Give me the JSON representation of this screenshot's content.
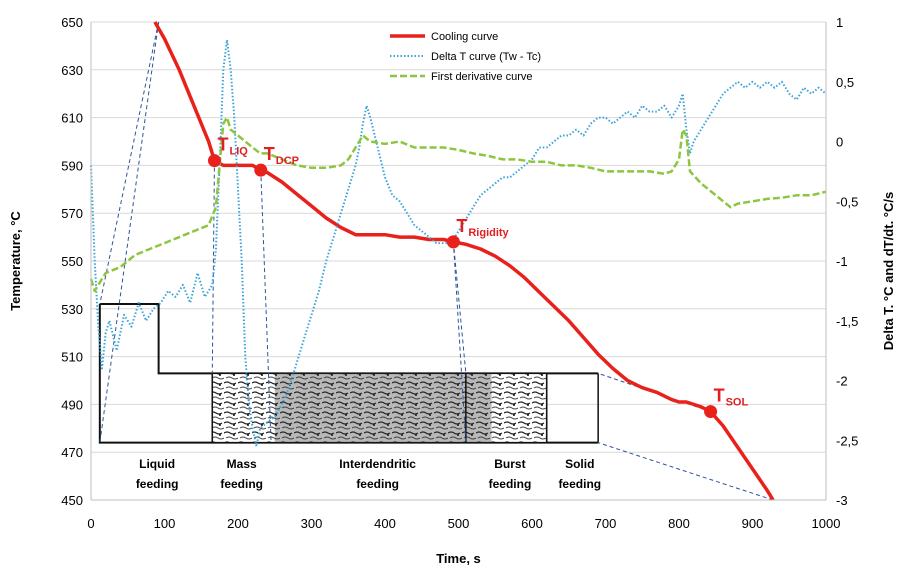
{
  "chart_data": {
    "type": "line",
    "x_axis": {
      "label": "Time, s",
      "range": [
        0,
        1000
      ],
      "ticks": [
        "0",
        "100",
        "200",
        "300",
        "400",
        "500",
        "600",
        "700",
        "800",
        "900",
        "1000"
      ]
    },
    "y_left": {
      "label": "Temperature, °C",
      "range": [
        450,
        650
      ],
      "ticks": [
        "450",
        "470",
        "490",
        "510",
        "530",
        "550",
        "570",
        "590",
        "610",
        "630",
        "650"
      ]
    },
    "y_right": {
      "label": "Delta T. °C and dT/dt. °C/s",
      "range": [
        -3,
        1
      ],
      "ticks": [
        "-3",
        "-2,5",
        "-2",
        "-1,5",
        "-1",
        "-0,5",
        "0",
        "0,5",
        "1"
      ]
    },
    "legend_position": "top-center",
    "series": [
      {
        "name": "Cooling curve",
        "axis": "left",
        "color": "#e8211b",
        "style": "solid",
        "points": [
          [
            87,
            650
          ],
          [
            100,
            643
          ],
          [
            120,
            630
          ],
          [
            140,
            615
          ],
          [
            160,
            600
          ],
          [
            168,
            592
          ],
          [
            180,
            590
          ],
          [
            200,
            590
          ],
          [
            220,
            590
          ],
          [
            231,
            588
          ],
          [
            240,
            587
          ],
          [
            260,
            583
          ],
          [
            280,
            578
          ],
          [
            300,
            573
          ],
          [
            320,
            568
          ],
          [
            340,
            564
          ],
          [
            360,
            561
          ],
          [
            380,
            561
          ],
          [
            400,
            561
          ],
          [
            420,
            560
          ],
          [
            440,
            560
          ],
          [
            460,
            559
          ],
          [
            480,
            559
          ],
          [
            493,
            558
          ],
          [
            510,
            557
          ],
          [
            530,
            555
          ],
          [
            550,
            552
          ],
          [
            570,
            548
          ],
          [
            590,
            543
          ],
          [
            610,
            537
          ],
          [
            630,
            531
          ],
          [
            650,
            525
          ],
          [
            670,
            518
          ],
          [
            690,
            511
          ],
          [
            710,
            505
          ],
          [
            730,
            500
          ],
          [
            750,
            497
          ],
          [
            770,
            495
          ],
          [
            790,
            492
          ],
          [
            800,
            491
          ],
          [
            810,
            491
          ],
          [
            820,
            490
          ],
          [
            830,
            489
          ],
          [
            843,
            487
          ],
          [
            860,
            481
          ],
          [
            880,
            472
          ],
          [
            900,
            463
          ],
          [
            920,
            454
          ],
          [
            928,
            450
          ]
        ]
      },
      {
        "name": "Delta T curve (Tw - Tc)",
        "axis": "right",
        "color": "#3ba3d9",
        "style": "dotted",
        "points": [
          [
            0,
            -0.2
          ],
          [
            5,
            -1.0
          ],
          [
            10,
            -1.55
          ],
          [
            15,
            -1.9
          ],
          [
            20,
            -1.6
          ],
          [
            25,
            -1.5
          ],
          [
            35,
            -1.75
          ],
          [
            45,
            -1.45
          ],
          [
            55,
            -1.55
          ],
          [
            65,
            -1.35
          ],
          [
            75,
            -1.5
          ],
          [
            85,
            -1.4
          ],
          [
            95,
            -1.35
          ],
          [
            105,
            -1.25
          ],
          [
            115,
            -1.3
          ],
          [
            125,
            -1.2
          ],
          [
            135,
            -1.35
          ],
          [
            145,
            -1.1
          ],
          [
            155,
            -1.3
          ],
          [
            165,
            -1.2
          ],
          [
            170,
            -0.9
          ],
          [
            175,
            -0.2
          ],
          [
            180,
            0.6
          ],
          [
            185,
            0.85
          ],
          [
            190,
            0.6
          ],
          [
            195,
            0.2
          ],
          [
            200,
            -0.4
          ],
          [
            205,
            -1.0
          ],
          [
            210,
            -1.8
          ],
          [
            215,
            -2.2
          ],
          [
            220,
            -2.4
          ],
          [
            225,
            -2.55
          ],
          [
            230,
            -2.4
          ],
          [
            240,
            -2.35
          ],
          [
            250,
            -2.3
          ],
          [
            260,
            -2.2
          ],
          [
            270,
            -2.05
          ],
          [
            280,
            -1.85
          ],
          [
            290,
            -1.65
          ],
          [
            300,
            -1.45
          ],
          [
            310,
            -1.25
          ],
          [
            320,
            -1.0
          ],
          [
            330,
            -0.8
          ],
          [
            340,
            -0.6
          ],
          [
            350,
            -0.4
          ],
          [
            360,
            -0.2
          ],
          [
            365,
            -0.05
          ],
          [
            370,
            0.15
          ],
          [
            375,
            0.3
          ],
          [
            380,
            0.2
          ],
          [
            390,
            -0.05
          ],
          [
            400,
            -0.3
          ],
          [
            410,
            -0.45
          ],
          [
            420,
            -0.5
          ],
          [
            430,
            -0.6
          ],
          [
            440,
            -0.7
          ],
          [
            450,
            -0.75
          ],
          [
            460,
            -0.8
          ],
          [
            470,
            -0.85
          ],
          [
            480,
            -0.85
          ],
          [
            490,
            -0.85
          ],
          [
            500,
            -0.75
          ],
          [
            510,
            -0.65
          ],
          [
            520,
            -0.55
          ],
          [
            530,
            -0.45
          ],
          [
            540,
            -0.4
          ],
          [
            550,
            -0.35
          ],
          [
            560,
            -0.3
          ],
          [
            570,
            -0.3
          ],
          [
            580,
            -0.25
          ],
          [
            590,
            -0.2
          ],
          [
            600,
            -0.15
          ],
          [
            610,
            -0.05
          ],
          [
            620,
            -0.05
          ],
          [
            630,
            0.0
          ],
          [
            640,
            0.05
          ],
          [
            650,
            0.05
          ],
          [
            660,
            0.1
          ],
          [
            670,
            0.05
          ],
          [
            680,
            0.15
          ],
          [
            690,
            0.2
          ],
          [
            700,
            0.2
          ],
          [
            710,
            0.15
          ],
          [
            720,
            0.2
          ],
          [
            730,
            0.25
          ],
          [
            740,
            0.2
          ],
          [
            750,
            0.3
          ],
          [
            760,
            0.25
          ],
          [
            770,
            0.25
          ],
          [
            780,
            0.3
          ],
          [
            790,
            0.2
          ],
          [
            800,
            0.3
          ],
          [
            805,
            0.4
          ],
          [
            810,
            0.1
          ],
          [
            815,
            -0.1
          ],
          [
            820,
            0.0
          ],
          [
            830,
            0.1
          ],
          [
            840,
            0.2
          ],
          [
            850,
            0.3
          ],
          [
            860,
            0.4
          ],
          [
            870,
            0.45
          ],
          [
            880,
            0.5
          ],
          [
            890,
            0.45
          ],
          [
            900,
            0.5
          ],
          [
            910,
            0.45
          ],
          [
            920,
            0.5
          ],
          [
            930,
            0.45
          ],
          [
            940,
            0.5
          ],
          [
            950,
            0.4
          ],
          [
            960,
            0.35
          ],
          [
            970,
            0.45
          ],
          [
            980,
            0.4
          ],
          [
            990,
            0.45
          ],
          [
            1000,
            0.4
          ]
        ]
      },
      {
        "name": "First derivative curve",
        "axis": "right",
        "color": "#8cc63f",
        "style": "dashed",
        "points": [
          [
            0,
            -1.15
          ],
          [
            5,
            -1.25
          ],
          [
            10,
            -1.2
          ],
          [
            20,
            -1.1
          ],
          [
            40,
            -1.05
          ],
          [
            60,
            -0.95
          ],
          [
            80,
            -0.9
          ],
          [
            100,
            -0.85
          ],
          [
            120,
            -0.8
          ],
          [
            140,
            -0.75
          ],
          [
            160,
            -0.7
          ],
          [
            170,
            -0.55
          ],
          [
            175,
            -0.2
          ],
          [
            180,
            0.15
          ],
          [
            185,
            0.2
          ],
          [
            190,
            0.1
          ],
          [
            200,
            0.05
          ],
          [
            210,
            0.0
          ],
          [
            220,
            -0.05
          ],
          [
            230,
            -0.1
          ],
          [
            240,
            -0.1
          ],
          [
            260,
            -0.15
          ],
          [
            280,
            -0.2
          ],
          [
            300,
            -0.22
          ],
          [
            320,
            -0.22
          ],
          [
            340,
            -0.2
          ],
          [
            350,
            -0.15
          ],
          [
            360,
            -0.05
          ],
          [
            370,
            0.05
          ],
          [
            380,
            0.0
          ],
          [
            400,
            -0.02
          ],
          [
            420,
            0.0
          ],
          [
            440,
            -0.05
          ],
          [
            460,
            -0.05
          ],
          [
            480,
            -0.05
          ],
          [
            500,
            -0.07
          ],
          [
            520,
            -0.1
          ],
          [
            540,
            -0.12
          ],
          [
            560,
            -0.15
          ],
          [
            580,
            -0.15
          ],
          [
            600,
            -0.17
          ],
          [
            620,
            -0.17
          ],
          [
            640,
            -0.2
          ],
          [
            660,
            -0.2
          ],
          [
            680,
            -0.22
          ],
          [
            700,
            -0.25
          ],
          [
            720,
            -0.25
          ],
          [
            740,
            -0.25
          ],
          [
            760,
            -0.25
          ],
          [
            780,
            -0.27
          ],
          [
            790,
            -0.25
          ],
          [
            800,
            -0.15
          ],
          [
            805,
            0.1
          ],
          [
            810,
            0.05
          ],
          [
            815,
            -0.25
          ],
          [
            830,
            -0.35
          ],
          [
            850,
            -0.45
          ],
          [
            870,
            -0.55
          ],
          [
            880,
            -0.52
          ],
          [
            900,
            -0.5
          ],
          [
            920,
            -0.48
          ],
          [
            940,
            -0.47
          ],
          [
            960,
            -0.45
          ],
          [
            980,
            -0.45
          ],
          [
            1000,
            -0.42
          ]
        ]
      }
    ],
    "annotations": [
      {
        "name": "T",
        "sub": "LIQ",
        "x": 168,
        "y": 592
      },
      {
        "name": "T",
        "sub": "DCP",
        "x": 231,
        "y": 588
      },
      {
        "name": "T",
        "sub": "Rigidity",
        "x": 493,
        "y": 558
      },
      {
        "name": "T",
        "sub": "SOL",
        "x": 843,
        "y": 487
      }
    ],
    "feeding_zones": [
      {
        "line1": "Liquid",
        "line2": "feeding",
        "x_center": 90
      },
      {
        "line1": "Mass",
        "line2": "feeding",
        "x_center": 205
      },
      {
        "line1": "Interdendritic",
        "line2": "feeding",
        "x_center": 390
      },
      {
        "line1": "Burst",
        "line2": "feeding",
        "x_center": 570
      },
      {
        "line1": "Solid",
        "line2": "feeding",
        "x_center": 665
      }
    ]
  }
}
